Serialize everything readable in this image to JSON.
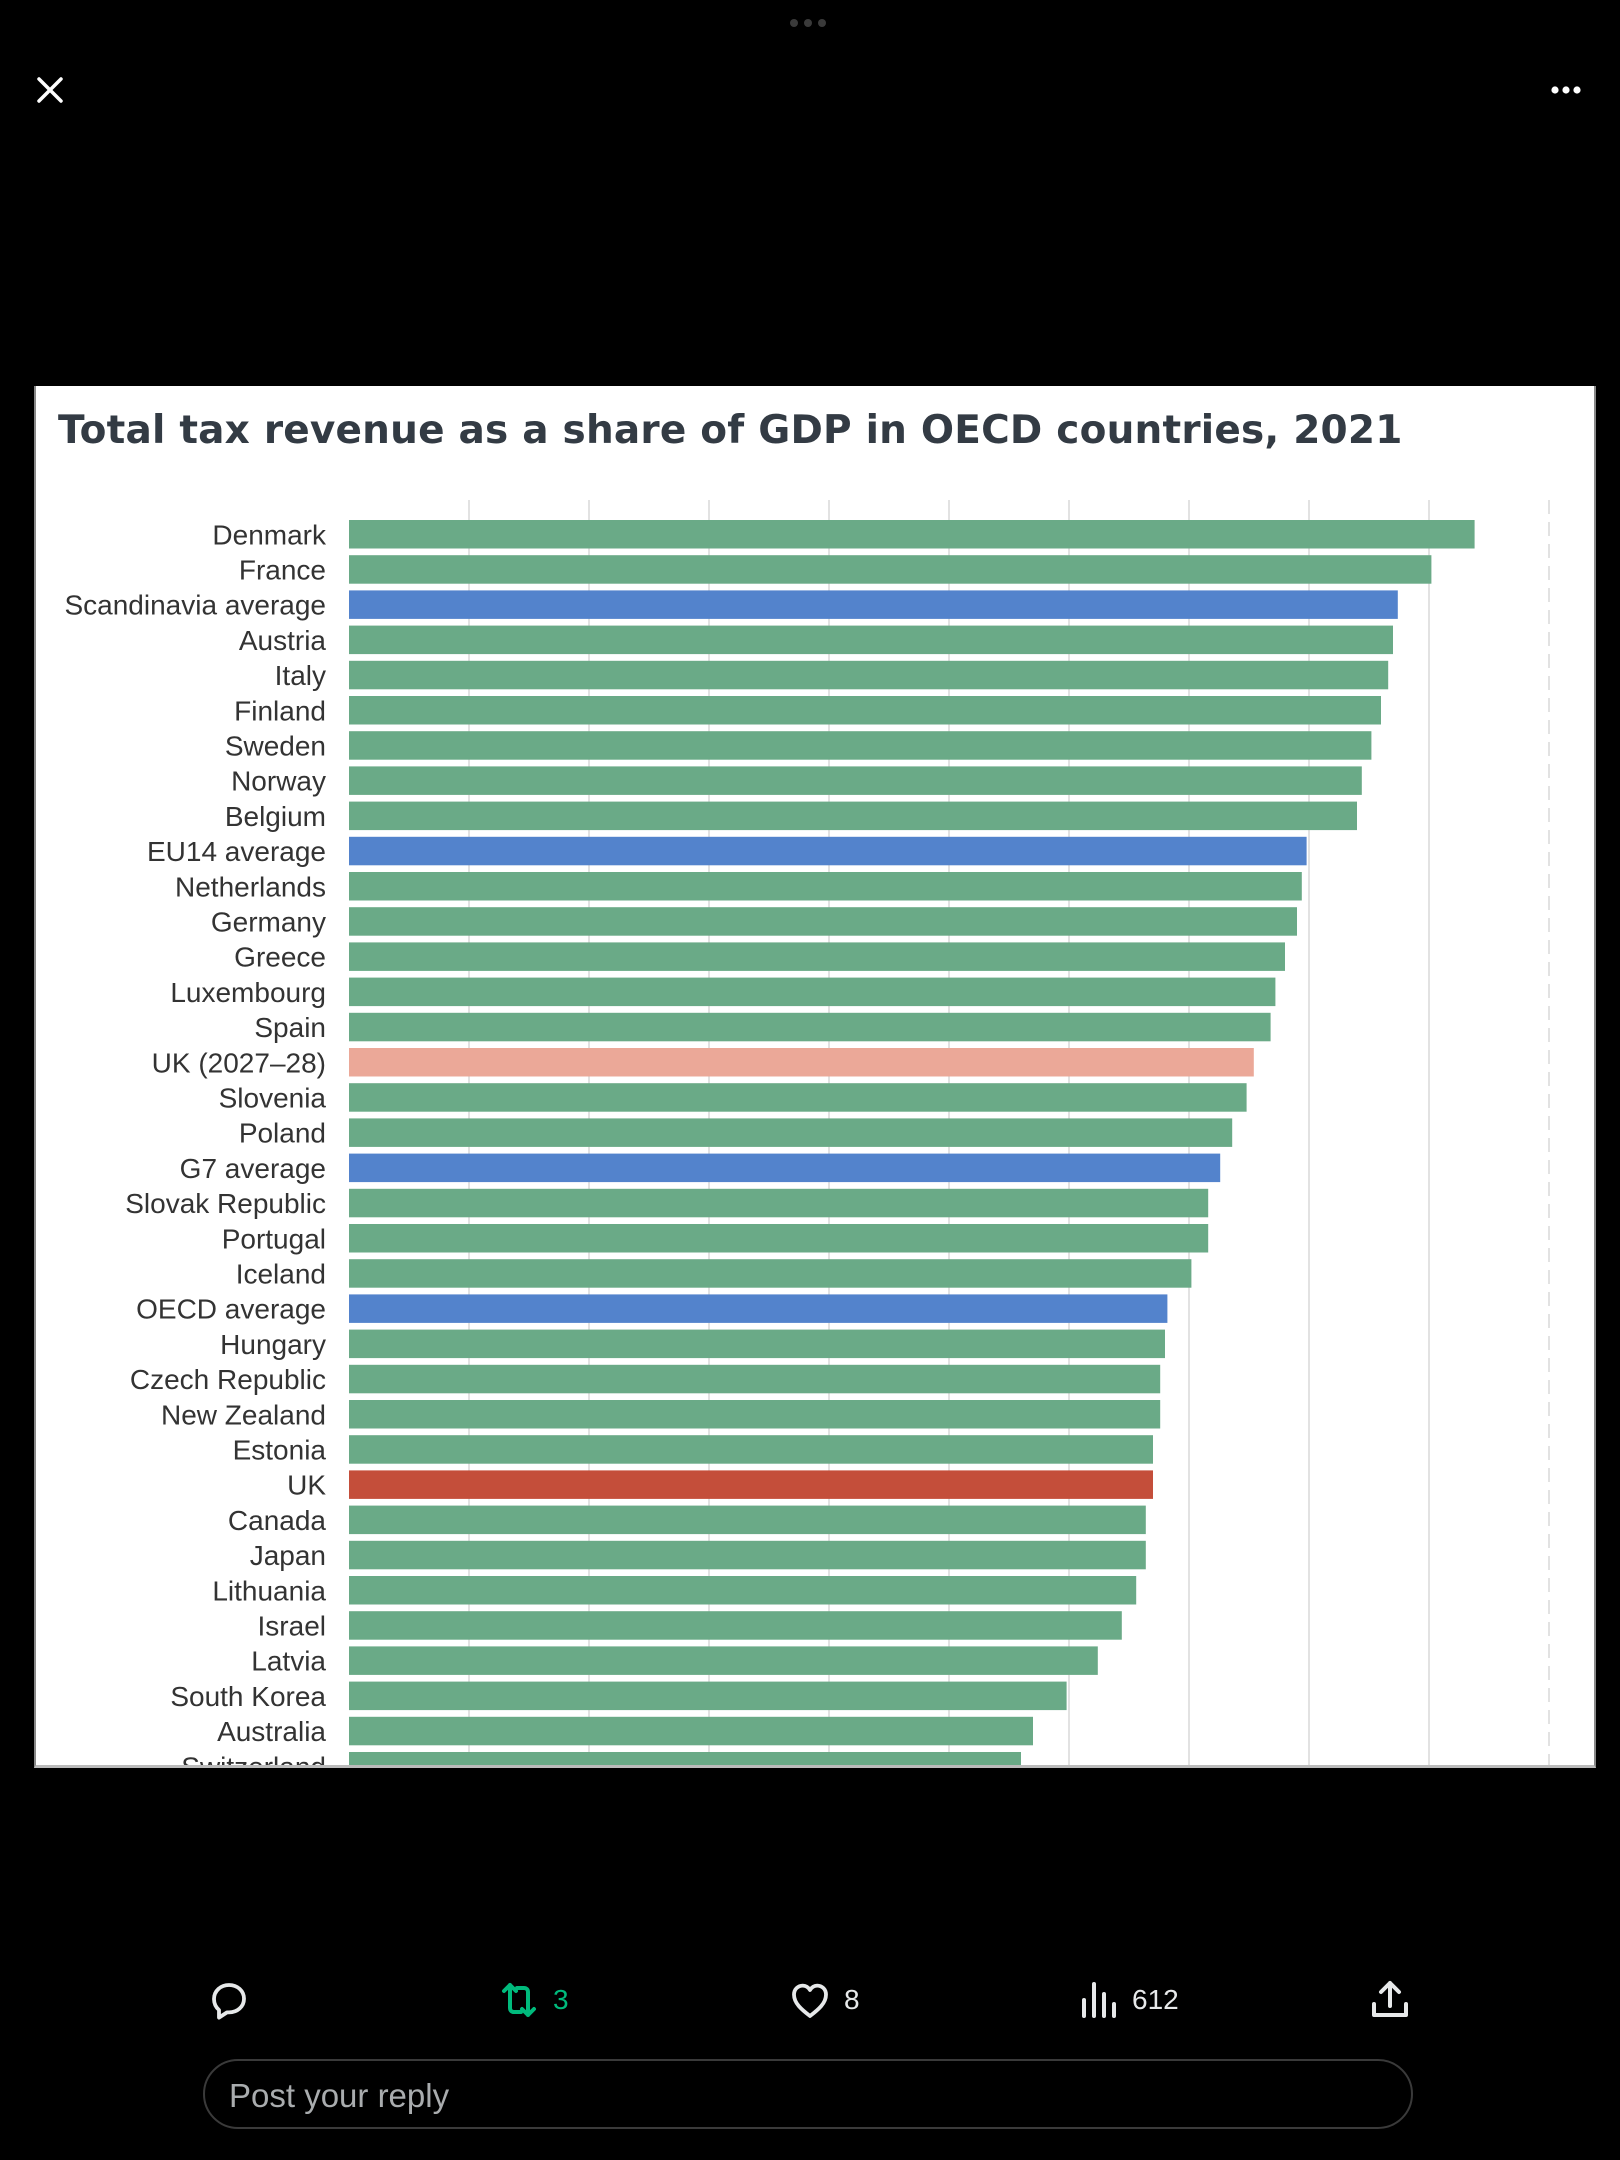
{
  "chart_data": {
    "type": "bar",
    "orientation": "horizontal",
    "title": "Total tax revenue as a share of GDP in OECD countries, 2021",
    "xlabel": "",
    "ylabel": "",
    "xlim": [
      0,
      50
    ],
    "grid": true,
    "colors": {
      "country": "#6aaa87",
      "average": "#5383cc",
      "uk_forecast": "#eba898",
      "uk": "#c44e3a"
    },
    "categories": [
      "Denmark",
      "France",
      "Scandinavia average",
      "Austria",
      "Italy",
      "Finland",
      "Sweden",
      "Norway",
      "Belgium",
      "EU14 average",
      "Netherlands",
      "Germany",
      "Greece",
      "Luxembourg",
      "Spain",
      "UK (2027–28)",
      "Slovenia",
      "Poland",
      "G7 average",
      "Slovak Republic",
      "Portugal",
      "Iceland",
      "OECD average",
      "Hungary",
      "Czech Republic",
      "New Zealand",
      "Estonia",
      "UK",
      "Canada",
      "Japan",
      "Lithuania",
      "Israel",
      "Latvia",
      "South Korea",
      "Australia",
      "Switzerland"
    ],
    "values": [
      46.9,
      45.1,
      43.7,
      43.5,
      43.3,
      43.0,
      42.6,
      42.2,
      42.0,
      39.9,
      39.7,
      39.5,
      39.0,
      38.6,
      38.4,
      37.7,
      37.4,
      36.8,
      36.3,
      35.8,
      35.8,
      35.1,
      34.1,
      34.0,
      33.8,
      33.8,
      33.5,
      33.5,
      33.2,
      33.2,
      32.8,
      32.2,
      31.2,
      29.9,
      28.5,
      28.0
    ],
    "kinds": [
      "country",
      "country",
      "average",
      "country",
      "country",
      "country",
      "country",
      "country",
      "country",
      "average",
      "country",
      "country",
      "country",
      "country",
      "country",
      "uk_forecast",
      "country",
      "country",
      "average",
      "country",
      "country",
      "country",
      "average",
      "country",
      "country",
      "country",
      "country",
      "uk",
      "country",
      "country",
      "country",
      "country",
      "country",
      "country",
      "country",
      "country"
    ]
  },
  "post_actions": {
    "reply": {
      "icon": "reply-bubble-icon"
    },
    "retweet": {
      "icon": "retweet-icon",
      "count": "3",
      "color": "#00ba7c"
    },
    "like": {
      "icon": "heart-icon",
      "count": "8"
    },
    "views": {
      "icon": "bar-chart-icon",
      "count": "612"
    },
    "share": {
      "icon": "share-upload-icon"
    }
  },
  "reply_input": {
    "placeholder": "Post your reply"
  },
  "top_bar": {
    "close_icon": "close-x-icon",
    "more_icon": "ellipsis-icon"
  }
}
